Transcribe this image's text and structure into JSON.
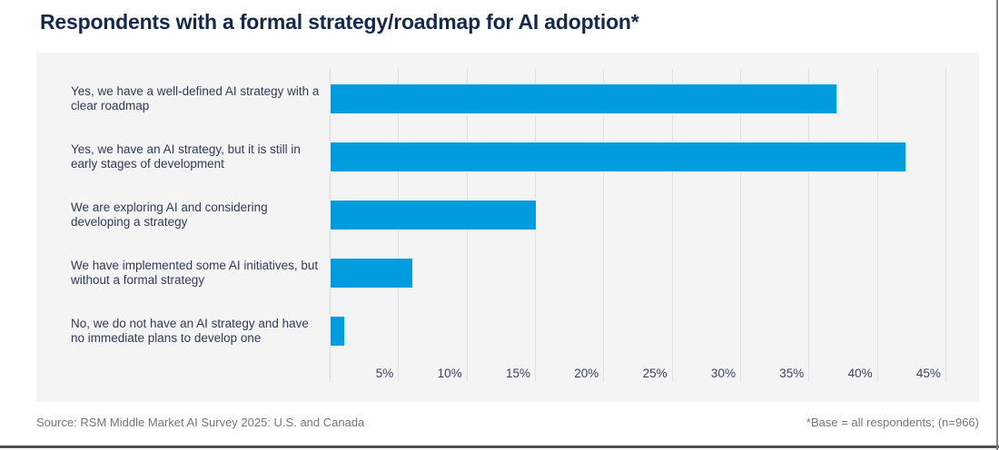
{
  "page": {
    "title": "Respondents with a formal strategy/roadmap for AI adoption*"
  },
  "footer": {
    "source": "Source: RSM Middle Market AI Survey 2025: U.S. and Canada",
    "base_note": "*Base = all respondents; (n=966)"
  },
  "colors": {
    "bar": "#009CDE",
    "title_text": "#15294D",
    "card_background": "#F5F4F4",
    "gridline": "#E3E2E2",
    "footer_text": "#767676"
  },
  "chart_data": {
    "type": "bar",
    "orientation": "horizontal",
    "title": "Respondents with a formal strategy/roadmap for AI adoption*",
    "categories": [
      "Yes, we have a well-defined AI strategy with a clear roadmap",
      "Yes, we have an AI strategy, but it is still in early stages of development",
      "We are exploring AI and considering developing a strategy",
      "We have implemented some AI initiatives, but without a formal strategy",
      "No, we do not have an AI strategy and have no immediate plans to develop one"
    ],
    "values": [
      37,
      42,
      15,
      6,
      1
    ],
    "unit": "%",
    "x_tick_labels": [
      "5%",
      "10%",
      "15%",
      "20%",
      "25%",
      "30%",
      "35%",
      "40%",
      "45%"
    ],
    "x_tick_values": [
      5,
      10,
      15,
      20,
      25,
      30,
      35,
      40,
      45
    ],
    "xlim": [
      0,
      46
    ],
    "grid": "vertical",
    "legend": "none",
    "data_labels": "none"
  }
}
